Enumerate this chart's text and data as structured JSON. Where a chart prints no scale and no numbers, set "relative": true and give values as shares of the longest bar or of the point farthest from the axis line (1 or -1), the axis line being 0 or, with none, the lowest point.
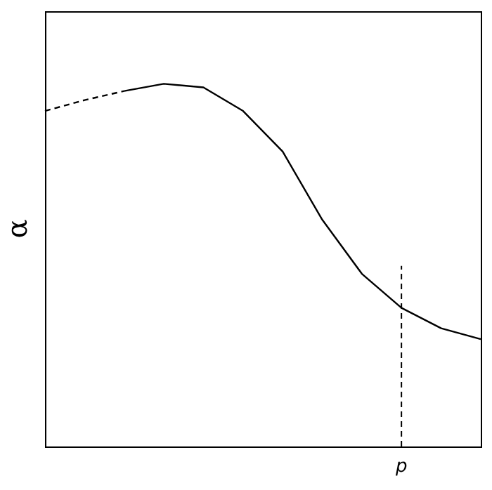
{
  "chart_data": {
    "type": "line",
    "ylabel": "α",
    "relative": true,
    "categories": [
      null,
      null,
      null,
      null,
      null,
      null,
      null,
      null,
      null,
      null,
      null,
      null
    ],
    "series": [
      {
        "color": "#000000",
        "line_style": "dashed",
        "values": [
          0.925,
          0.955,
          0.98,
          null,
          null,
          null,
          null,
          null,
          null,
          null,
          null,
          null
        ]
      },
      {
        "color": "#000000",
        "line_style": "solid",
        "values": [
          null,
          null,
          0.98,
          1,
          0.99,
          0.925,
          0.813,
          0.625,
          0.476,
          0.382,
          0.326,
          0.296
        ]
      }
    ],
    "annotations": [
      "p"
    ]
  }
}
